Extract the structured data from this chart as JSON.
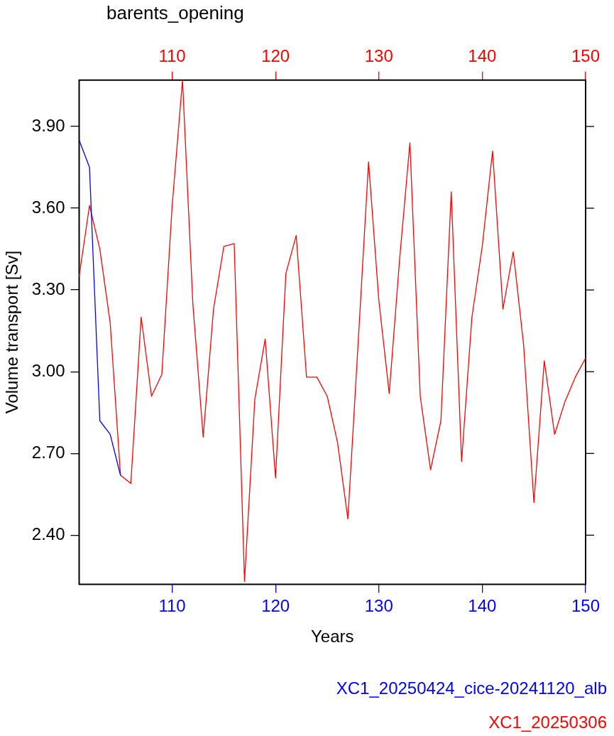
{
  "chart_data": {
    "type": "line",
    "title": "barents_opening",
    "xlabel": "Years",
    "ylabel": "Volume transport [Sv]",
    "legend": "bottom right",
    "grid": false,
    "marker": "none",
    "line_style": "solid",
    "xlim": [
      101,
      150
    ],
    "xticks": [
      110,
      120,
      130,
      140,
      150
    ],
    "x2lim": [
      101,
      150
    ],
    "x2ticks": [
      110,
      120,
      130,
      140,
      150
    ],
    "ylim": [
      2.22,
      4.07
    ],
    "yticks": [
      {
        "value": 2.4,
        "label": "2.40"
      },
      {
        "value": 2.7,
        "label": "2.70"
      },
      {
        "value": 3.0,
        "label": "3.00"
      },
      {
        "value": 3.3,
        "label": "3.30"
      },
      {
        "value": 3.6,
        "label": "3.60"
      },
      {
        "value": 3.9,
        "label": "3.90"
      }
    ],
    "series": [
      {
        "name": "XC1_20250424_cice-20241120_alb",
        "color": "#0000ff",
        "x": [
          101,
          102,
          103,
          104,
          105
        ],
        "values": [
          3.85,
          3.75,
          2.82,
          2.77,
          2.62
        ]
      },
      {
        "name": "XC1_20250306",
        "color": "#ff0000",
        "axis": "x2",
        "x": [
          101,
          102,
          103,
          104,
          105,
          106,
          107,
          108,
          109,
          110,
          111,
          112,
          113,
          114,
          115,
          116,
          117,
          118,
          119,
          120,
          121,
          122,
          123,
          124,
          125,
          126,
          127,
          128,
          129,
          130,
          131,
          132,
          133,
          134,
          135,
          136,
          137,
          138,
          139,
          140,
          141,
          142,
          143,
          144,
          145,
          146,
          147,
          148,
          149,
          150
        ],
        "values": [
          3.35,
          3.61,
          3.45,
          3.18,
          2.62,
          2.59,
          3.2,
          2.91,
          2.99,
          3.61,
          4.07,
          3.25,
          2.76,
          3.23,
          3.46,
          3.47,
          2.23,
          2.9,
          3.12,
          2.61,
          3.36,
          3.5,
          2.98,
          2.98,
          2.91,
          2.74,
          2.46,
          3.11,
          3.77,
          3.26,
          2.92,
          3.41,
          3.84,
          2.91,
          2.64,
          2.82,
          3.66,
          2.67,
          3.2,
          3.46,
          3.81,
          3.23,
          3.44,
          3.1,
          2.52,
          3.04,
          2.77,
          2.89,
          2.98,
          3.05
        ]
      }
    ]
  }
}
